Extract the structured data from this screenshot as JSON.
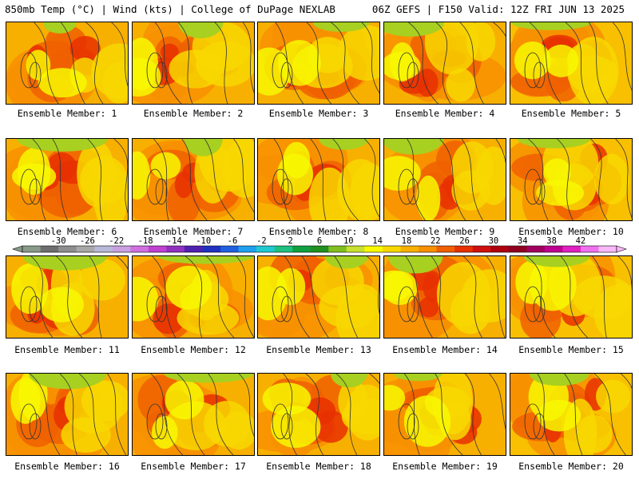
{
  "header": {
    "left": "850mb Temp (°C) | Wind (kts) | College of DuPage NEXLAB",
    "right": "06Z GEFS | F150 Valid: 12Z FRI JUN 13 2025"
  },
  "member_label_prefix": "Ensemble Member:",
  "members": [
    "1",
    "2",
    "3",
    "4",
    "5",
    "6",
    "7",
    "8",
    "9",
    "10",
    "11",
    "12",
    "13",
    "14",
    "15",
    "16",
    "17",
    "18",
    "19",
    "20"
  ],
  "colorbar": {
    "tick_labels": [
      "-30",
      "-26",
      "-22",
      "-18",
      "-14",
      "-10",
      "-6",
      "-2",
      "2",
      "6",
      "10",
      "14",
      "18",
      "22",
      "26",
      "30",
      "34",
      "38",
      "42"
    ],
    "colors": [
      "#8a9a8a",
      "#6e6e6e",
      "#8e8e8e",
      "#a8a8a8",
      "#b8b8d8",
      "#c8a0e0",
      "#d070e0",
      "#c040d0",
      "#9030c0",
      "#5020b0",
      "#2030c0",
      "#2060e0",
      "#20a0f0",
      "#20c8d0",
      "#20c080",
      "#10a040",
      "#209020",
      "#80c020",
      "#c8e030",
      "#f8f800",
      "#f8d800",
      "#f8b000",
      "#f89000",
      "#f06000",
      "#e83000",
      "#d01010",
      "#b00010",
      "#900020",
      "#a00060",
      "#c00090",
      "#e020c0",
      "#f070f0",
      "#f8b8f8"
    ]
  }
}
